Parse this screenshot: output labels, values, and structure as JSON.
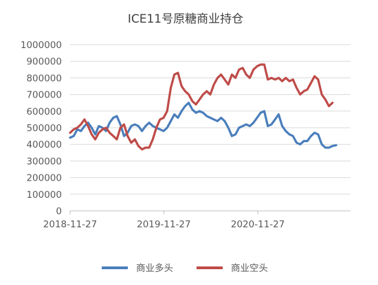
{
  "chart_data": {
    "type": "line",
    "title": "ICE11号原糖商业持仓",
    "xlabel": "",
    "ylabel": "",
    "x_start": "2018-11-27",
    "x_end": "2021-11-23",
    "x_ticks": [
      "2018-11-27",
      "2019-11-27",
      "2020-11-27"
    ],
    "ylim": [
      0,
      1000000
    ],
    "y_ticks": [
      "0",
      "100000",
      "200000",
      "300000",
      "400000",
      "500000",
      "600000",
      "700000",
      "800000",
      "900000",
      "1000000"
    ],
    "grid": "horizontal",
    "legend_position": "bottom",
    "colors": {
      "long": "#4a7ebb",
      "short": "#be4b48",
      "grid": "#d9d9d9",
      "axis": "#bfbfbf"
    },
    "series": [
      {
        "name": "商业多头",
        "color": "#4a7ebb",
        "points": [
          [
            "2018-11-27",
            440000
          ],
          [
            "2018-12-11",
            450000
          ],
          [
            "2018-12-25",
            490000
          ],
          [
            "2019-01-08",
            480000
          ],
          [
            "2019-01-22",
            510000
          ],
          [
            "2019-02-05",
            530000
          ],
          [
            "2019-02-19",
            500000
          ],
          [
            "2019-03-05",
            460000
          ],
          [
            "2019-03-19",
            510000
          ],
          [
            "2019-04-02",
            500000
          ],
          [
            "2019-04-16",
            480000
          ],
          [
            "2019-04-30",
            530000
          ],
          [
            "2019-05-14",
            560000
          ],
          [
            "2019-05-28",
            570000
          ],
          [
            "2019-06-11",
            520000
          ],
          [
            "2019-06-25",
            450000
          ],
          [
            "2019-07-09",
            470000
          ],
          [
            "2019-07-23",
            510000
          ],
          [
            "2019-08-06",
            520000
          ],
          [
            "2019-08-20",
            510000
          ],
          [
            "2019-09-03",
            480000
          ],
          [
            "2019-09-17",
            510000
          ],
          [
            "2019-10-01",
            530000
          ],
          [
            "2019-10-15",
            510000
          ],
          [
            "2019-10-29",
            500000
          ],
          [
            "2019-11-12",
            490000
          ],
          [
            "2019-11-26",
            480000
          ],
          [
            "2019-12-10",
            500000
          ],
          [
            "2019-12-24",
            540000
          ],
          [
            "2020-01-07",
            580000
          ],
          [
            "2020-01-21",
            560000
          ],
          [
            "2020-02-04",
            600000
          ],
          [
            "2020-02-18",
            630000
          ],
          [
            "2020-03-03",
            650000
          ],
          [
            "2020-03-17",
            610000
          ],
          [
            "2020-03-31",
            590000
          ],
          [
            "2020-04-14",
            600000
          ],
          [
            "2020-04-28",
            590000
          ],
          [
            "2020-05-12",
            570000
          ],
          [
            "2020-05-26",
            560000
          ],
          [
            "2020-06-09",
            550000
          ],
          [
            "2020-06-23",
            540000
          ],
          [
            "2020-07-07",
            560000
          ],
          [
            "2020-07-21",
            540000
          ],
          [
            "2020-08-04",
            500000
          ],
          [
            "2020-08-18",
            450000
          ],
          [
            "2020-09-01",
            460000
          ],
          [
            "2020-09-15",
            500000
          ],
          [
            "2020-09-29",
            510000
          ],
          [
            "2020-10-13",
            520000
          ],
          [
            "2020-10-27",
            510000
          ],
          [
            "2020-11-10",
            530000
          ],
          [
            "2020-11-24",
            560000
          ],
          [
            "2020-12-08",
            590000
          ],
          [
            "2020-12-22",
            600000
          ],
          [
            "2021-01-05",
            510000
          ],
          [
            "2021-01-19",
            520000
          ],
          [
            "2021-02-02",
            550000
          ],
          [
            "2021-02-16",
            580000
          ],
          [
            "2021-03-02",
            510000
          ],
          [
            "2021-03-16",
            480000
          ],
          [
            "2021-03-30",
            460000
          ],
          [
            "2021-04-13",
            450000
          ],
          [
            "2021-04-27",
            410000
          ],
          [
            "2021-05-11",
            400000
          ],
          [
            "2021-05-25",
            420000
          ],
          [
            "2021-06-08",
            420000
          ],
          [
            "2021-06-22",
            450000
          ],
          [
            "2021-07-06",
            470000
          ],
          [
            "2021-07-20",
            460000
          ],
          [
            "2021-08-03",
            400000
          ],
          [
            "2021-08-17",
            380000
          ],
          [
            "2021-08-31",
            380000
          ],
          [
            "2021-09-14",
            390000
          ],
          [
            "2021-09-28",
            395000
          ]
        ]
      },
      {
        "name": "商业空头",
        "color": "#be4b48",
        "points": [
          [
            "2018-11-27",
            470000
          ],
          [
            "2018-12-11",
            490000
          ],
          [
            "2018-12-25",
            500000
          ],
          [
            "2019-01-08",
            520000
          ],
          [
            "2019-01-22",
            550000
          ],
          [
            "2019-02-05",
            510000
          ],
          [
            "2019-02-19",
            460000
          ],
          [
            "2019-03-05",
            430000
          ],
          [
            "2019-03-19",
            470000
          ],
          [
            "2019-04-02",
            490000
          ],
          [
            "2019-04-16",
            500000
          ],
          [
            "2019-04-30",
            470000
          ],
          [
            "2019-05-14",
            450000
          ],
          [
            "2019-05-28",
            430000
          ],
          [
            "2019-06-11",
            500000
          ],
          [
            "2019-06-25",
            520000
          ],
          [
            "2019-07-09",
            450000
          ],
          [
            "2019-07-23",
            410000
          ],
          [
            "2019-08-06",
            430000
          ],
          [
            "2019-08-20",
            390000
          ],
          [
            "2019-09-03",
            370000
          ],
          [
            "2019-09-17",
            380000
          ],
          [
            "2019-10-01",
            380000
          ],
          [
            "2019-10-15",
            430000
          ],
          [
            "2019-10-29",
            500000
          ],
          [
            "2019-11-12",
            550000
          ],
          [
            "2019-11-26",
            560000
          ],
          [
            "2019-12-10",
            600000
          ],
          [
            "2019-12-24",
            740000
          ],
          [
            "2020-01-07",
            820000
          ],
          [
            "2020-01-21",
            830000
          ],
          [
            "2020-02-04",
            750000
          ],
          [
            "2020-02-18",
            720000
          ],
          [
            "2020-03-03",
            700000
          ],
          [
            "2020-03-17",
            660000
          ],
          [
            "2020-03-31",
            640000
          ],
          [
            "2020-04-14",
            670000
          ],
          [
            "2020-04-28",
            700000
          ],
          [
            "2020-05-12",
            720000
          ],
          [
            "2020-05-26",
            700000
          ],
          [
            "2020-06-09",
            760000
          ],
          [
            "2020-06-23",
            800000
          ],
          [
            "2020-07-07",
            820000
          ],
          [
            "2020-07-21",
            790000
          ],
          [
            "2020-08-04",
            760000
          ],
          [
            "2020-08-18",
            820000
          ],
          [
            "2020-09-01",
            800000
          ],
          [
            "2020-09-15",
            850000
          ],
          [
            "2020-09-29",
            860000
          ],
          [
            "2020-10-13",
            820000
          ],
          [
            "2020-10-27",
            800000
          ],
          [
            "2020-11-10",
            850000
          ],
          [
            "2020-11-24",
            870000
          ],
          [
            "2020-12-08",
            880000
          ],
          [
            "2020-12-22",
            880000
          ],
          [
            "2021-01-05",
            790000
          ],
          [
            "2021-01-19",
            800000
          ],
          [
            "2021-02-02",
            790000
          ],
          [
            "2021-02-16",
            800000
          ],
          [
            "2021-03-02",
            780000
          ],
          [
            "2021-03-16",
            800000
          ],
          [
            "2021-03-30",
            780000
          ],
          [
            "2021-04-13",
            790000
          ],
          [
            "2021-04-27",
            740000
          ],
          [
            "2021-05-11",
            700000
          ],
          [
            "2021-05-25",
            720000
          ],
          [
            "2021-06-08",
            730000
          ],
          [
            "2021-06-22",
            770000
          ],
          [
            "2021-07-06",
            810000
          ],
          [
            "2021-07-20",
            790000
          ],
          [
            "2021-08-03",
            700000
          ],
          [
            "2021-08-17",
            670000
          ],
          [
            "2021-08-31",
            630000
          ],
          [
            "2021-09-14",
            650000
          ]
        ]
      }
    ]
  }
}
